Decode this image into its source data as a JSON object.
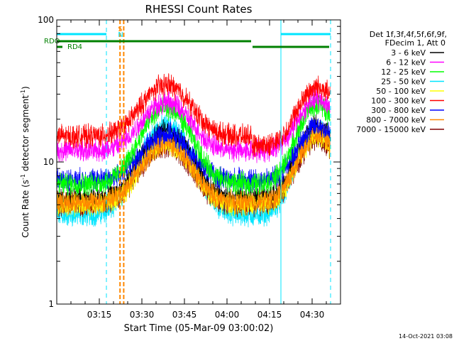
{
  "chart_data": {
    "type": "line",
    "title": "RHESSI Count Rates",
    "xlabel": "Start Time (05-Mar-09 03:00:02)",
    "ylabel_main": "Count Rate (s",
    "ylabel_sup1": "-1",
    "ylabel_mid": " detector segment",
    "ylabel_sup2": "-1",
    "ylabel_end": ")",
    "y_scale": "log",
    "ylim": [
      1,
      100
    ],
    "xlim_minutes": [
      0,
      100
    ],
    "x_ticks": [
      {
        "min": 15,
        "label": "03:15"
      },
      {
        "min": 30,
        "label": "03:30"
      },
      {
        "min": 45,
        "label": "03:45"
      },
      {
        "min": 60,
        "label": "04:00"
      },
      {
        "min": 75,
        "label": "04:15"
      },
      {
        "min": 90,
        "label": "04:30"
      }
    ],
    "y_ticks": [
      {
        "value": 1,
        "label": "1"
      },
      {
        "value": 10,
        "label": "10"
      },
      {
        "value": 100,
        "label": "100"
      }
    ],
    "legend_header": [
      "Det 1f,3f,4f,5f,6f,9f,",
      "FDecim 1, Att 0"
    ],
    "series": [
      {
        "name": "3 - 6 keV",
        "color": "#000000",
        "base": 5.5,
        "p1": 3.0,
        "p2": 3.2,
        "jump": 1.0
      },
      {
        "name": "6 - 12 keV",
        "color": "#ff00ff",
        "base": 12.0,
        "p1": 2.2,
        "p2": 2.3,
        "jump": 1.0
      },
      {
        "name": "12 - 25 keV",
        "color": "#00ff00",
        "base": 7.0,
        "p1": 3.4,
        "p2": 3.6,
        "jump": 1.0
      },
      {
        "name": "25 - 50 keV",
        "color": "#00e5ff",
        "base": 4.2,
        "p1": 4.3,
        "p2": 3.9,
        "jump": 1.0
      },
      {
        "name": "50 - 100 keV",
        "color": "#ffff00",
        "base": 5.0,
        "p1": 2.7,
        "p2": 3.0,
        "jump": 1.0
      },
      {
        "name": "100 - 300 keV",
        "color": "#ff0000",
        "base": 13.0,
        "p1": 2.3,
        "p2": 2.6,
        "jump": 1.17
      },
      {
        "name": "300 - 800 keV",
        "color": "#0000ff",
        "base": 7.5,
        "p1": 2.1,
        "p2": 2.4,
        "jump": 1.0
      },
      {
        "name": "800 - 7000 keV",
        "color": "#ff8800",
        "base": 5.2,
        "p1": 2.6,
        "p2": 3.0,
        "jump": 1.0
      },
      {
        "name": "7000 - 15000 keV",
        "color": "#800000",
        "base": 5.0,
        "p1": 2.6,
        "p2": 2.9,
        "jump": 1.0
      }
    ],
    "flags": {
      "rdo_label": "RDO",
      "rd4_label": "RD4",
      "s_label": "S",
      "n_label": "N",
      "night_intervals": [
        [
          0,
          17.5
        ],
        [
          79,
          96.5
        ]
      ],
      "night_line_min": 17.5,
      "night_line2_min": 96.5,
      "day_line_min": 79,
      "saa_minutes": [
        22.3,
        23.6
      ],
      "rdo_intervals": [
        [
          0,
          68.5
        ],
        [
          69,
          96
        ]
      ]
    },
    "footer_date": "14-Oct-2021 03:08"
  }
}
